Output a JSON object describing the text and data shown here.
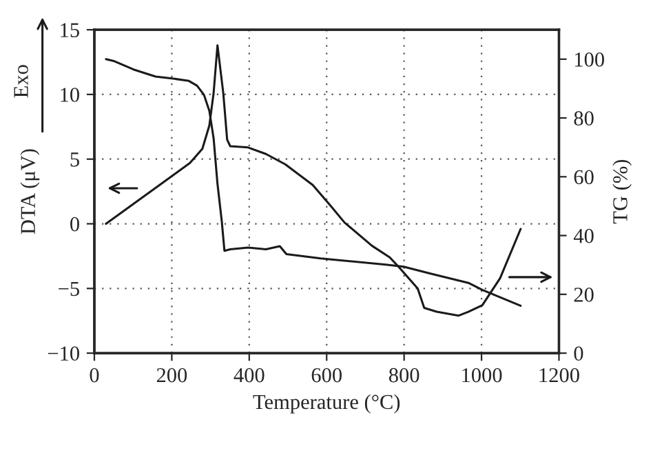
{
  "chart_data": {
    "type": "line",
    "xlabel": "Temperature (°C)",
    "ylabel": "DTA (μV)",
    "y2label": "TG (%)",
    "annotations": [
      "Exo"
    ],
    "series": [
      {
        "color": "#1a1a1a",
        "x": [
          30,
          247,
          279,
          297,
          308,
          318,
          333,
          343,
          351,
          397,
          443,
          493,
          564,
          610,
          646,
          717,
          763,
          788,
          835,
          852,
          884,
          941,
          966,
          1002,
          1048,
          1101
        ],
        "values": [
          0,
          4.7,
          5.8,
          7.6,
          10.1,
          13.8,
          10.1,
          6.5,
          6.0,
          5.9,
          5.4,
          4.6,
          3.0,
          1.4,
          0.1,
          -1.7,
          -2.6,
          -3.4,
          -5.0,
          -6.5,
          -6.8,
          -7.1,
          -6.8,
          -6.3,
          -4.2,
          -0.4
        ]
      },
      {
        "color": "#1a1a1a",
        "axis": "y2",
        "x": [
          30,
          52,
          101,
          158,
          208,
          244,
          265,
          283,
          297,
          308,
          318,
          329,
          336,
          351,
          397,
          443,
          479,
          496,
          585,
          753,
          799,
          870,
          966,
          1002,
          1101
        ],
        "values": [
          100,
          99.3,
          96.5,
          94.1,
          93.3,
          92.6,
          91.0,
          87.9,
          82.4,
          73.1,
          57.6,
          45.0,
          34.8,
          35.3,
          35.9,
          35.3,
          36.4,
          33.7,
          32.2,
          30.1,
          29.4,
          27.0,
          23.9,
          21.5,
          16.1
        ]
      }
    ],
    "xlim": [
      0,
      1200
    ],
    "xticks": [
      0,
      200,
      400,
      600,
      800,
      1000,
      1200
    ],
    "ylim": [
      -10,
      15
    ],
    "yticks": [
      -10,
      -5,
      0,
      5,
      10,
      15
    ],
    "y2lim": [
      0,
      110
    ],
    "y2ticks": [
      0,
      20,
      40,
      60,
      80,
      100
    ],
    "grid": true,
    "line_style": "solid",
    "marker": "none"
  }
}
